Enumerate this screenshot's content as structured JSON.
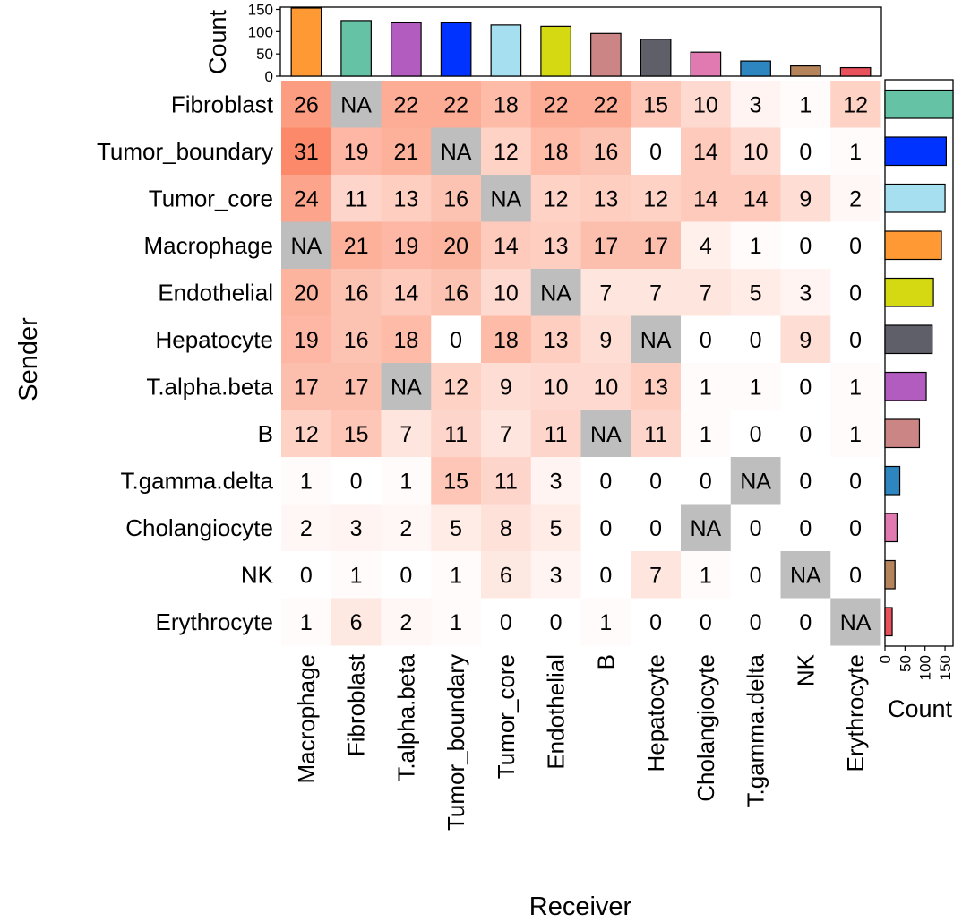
{
  "chart_data": {
    "type": "heatmap",
    "xlabel": "Receiver",
    "ylabel": "Sender",
    "rows": [
      "Fibroblast",
      "Tumor_boundary",
      "Tumor_core",
      "Macrophage",
      "Endothelial",
      "Hepatocyte",
      "T.alpha.beta",
      "B",
      "T.gamma.delta",
      "Cholangiocyte",
      "NK",
      "Erythrocyte"
    ],
    "columns": [
      "Macrophage",
      "Fibroblast",
      "T.alpha.beta",
      "Tumor_boundary",
      "Tumor_core",
      "Endothelial",
      "B",
      "Hepatocyte",
      "Cholangiocyte",
      "T.gamma.delta",
      "NK",
      "Erythrocyte"
    ],
    "matrix": [
      [
        26,
        "NA",
        22,
        22,
        18,
        22,
        22,
        15,
        10,
        3,
        1,
        12
      ],
      [
        31,
        19,
        21,
        "NA",
        12,
        18,
        16,
        0,
        14,
        10,
        0,
        1
      ],
      [
        24,
        11,
        13,
        16,
        "NA",
        12,
        13,
        12,
        14,
        14,
        9,
        2
      ],
      [
        "NA",
        21,
        19,
        20,
        14,
        13,
        17,
        17,
        4,
        1,
        0,
        0
      ],
      [
        20,
        16,
        14,
        16,
        10,
        "NA",
        7,
        7,
        7,
        5,
        3,
        0
      ],
      [
        19,
        16,
        18,
        0,
        18,
        13,
        9,
        "NA",
        0,
        0,
        9,
        0
      ],
      [
        17,
        17,
        "NA",
        12,
        9,
        10,
        10,
        13,
        1,
        1,
        0,
        1
      ],
      [
        12,
        15,
        7,
        11,
        7,
        11,
        "NA",
        11,
        1,
        0,
        0,
        1
      ],
      [
        1,
        0,
        1,
        15,
        11,
        3,
        0,
        0,
        0,
        "NA",
        0,
        0
      ],
      [
        2,
        3,
        2,
        5,
        8,
        5,
        0,
        0,
        "NA",
        0,
        0,
        0
      ],
      [
        0,
        1,
        0,
        1,
        6,
        3,
        0,
        7,
        1,
        0,
        "NA",
        0
      ],
      [
        1,
        6,
        2,
        1,
        0,
        0,
        1,
        0,
        0,
        0,
        0,
        "NA"
      ]
    ],
    "na_label": "NA",
    "color_scale": {
      "low": "#ffffff",
      "high": "#fc8a6a",
      "na": "#bebebe",
      "domain": [
        0,
        31
      ]
    },
    "top_bar": {
      "ylabel": "Count",
      "ticks": [
        0,
        50,
        100,
        150
      ],
      "ylim": [
        0,
        155
      ],
      "values": [
        153,
        125,
        120,
        120,
        115,
        112,
        96,
        83,
        54,
        34,
        23,
        19
      ],
      "colors": [
        "#ff9933",
        "#66c2a5",
        "#b35cbf",
        "#0033ff",
        "#a6dff0",
        "#d4d912",
        "#cc8585",
        "#5f5f6a",
        "#e07ab0",
        "#2e86c1",
        "#b5845a",
        "#e8505b"
      ]
    },
    "right_bar": {
      "xlabel": "Count",
      "ticks": [
        0,
        50,
        100,
        150
      ],
      "xlim": [
        0,
        170
      ],
      "values": [
        170,
        153,
        150,
        141,
        121,
        118,
        103,
        86,
        37,
        30,
        25,
        18
      ],
      "colors": [
        "#66c2a5",
        "#0033ff",
        "#a6dff0",
        "#ff9933",
        "#d4d912",
        "#5f5f6a",
        "#b35cbf",
        "#cc8585",
        "#2e86c1",
        "#e07ab0",
        "#b5845a",
        "#e8505b"
      ]
    }
  }
}
